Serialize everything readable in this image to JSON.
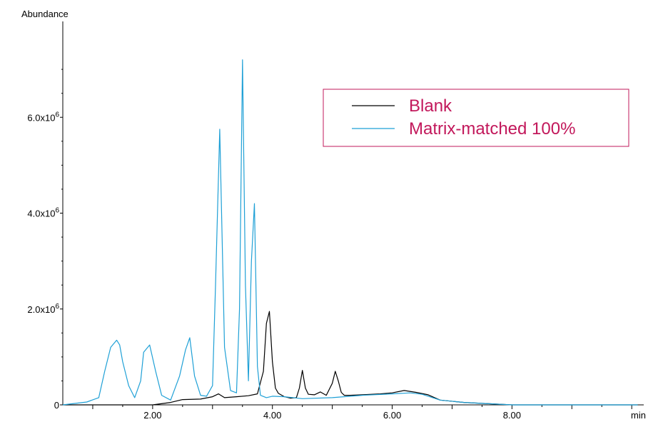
{
  "chart_data": {
    "type": "line",
    "title": "",
    "ylabel": "Abundance",
    "xlabel": "min",
    "xlim": [
      0.5,
      10.2
    ],
    "ylim": [
      0,
      8000000
    ],
    "x_ticks": [
      {
        "value": 2,
        "label": "2.00"
      },
      {
        "value": 4,
        "label": "4.00"
      },
      {
        "value": 6,
        "label": "6.00"
      },
      {
        "value": 8,
        "label": "8.00"
      }
    ],
    "y_ticks": [
      {
        "value": 0,
        "mantissa": "0",
        "exp": ""
      },
      {
        "value": 2000000,
        "mantissa": "2.0x10",
        "exp": "6"
      },
      {
        "value": 4000000,
        "mantissa": "4.0x10",
        "exp": "6"
      },
      {
        "value": 6000000,
        "mantissa": "6.0x10",
        "exp": "6"
      }
    ],
    "legend_position": "top-right",
    "series": [
      {
        "name": "Blank",
        "color": "#000000",
        "x": [
          0.5,
          1.0,
          2.0,
          2.3,
          2.5,
          2.8,
          3.0,
          3.1,
          3.2,
          3.4,
          3.6,
          3.75,
          3.85,
          3.9,
          3.95,
          4.0,
          4.05,
          4.1,
          4.2,
          4.3,
          4.4,
          4.45,
          4.5,
          4.55,
          4.6,
          4.7,
          4.8,
          4.9,
          5.0,
          5.05,
          5.1,
          5.15,
          5.2,
          5.3,
          5.5,
          5.8,
          6.0,
          6.2,
          6.4,
          6.6,
          6.8,
          7.2,
          8.0,
          9.0,
          10.1
        ],
        "y": [
          0,
          0,
          0,
          50000,
          110000,
          120000,
          170000,
          230000,
          150000,
          170000,
          190000,
          230000,
          700000,
          1700000,
          1950000,
          900000,
          350000,
          240000,
          170000,
          140000,
          150000,
          350000,
          720000,
          350000,
          220000,
          210000,
          270000,
          200000,
          450000,
          700000,
          500000,
          260000,
          200000,
          200000,
          210000,
          230000,
          250000,
          300000,
          260000,
          210000,
          100000,
          50000,
          0,
          0,
          0
        ]
      },
      {
        "name": "Matrix-matched 100%",
        "color": "#1fa0d6",
        "x": [
          0.5,
          0.9,
          1.1,
          1.2,
          1.3,
          1.4,
          1.45,
          1.5,
          1.6,
          1.7,
          1.8,
          1.85,
          1.95,
          2.05,
          2.15,
          2.3,
          2.45,
          2.55,
          2.62,
          2.7,
          2.8,
          2.9,
          3.0,
          3.05,
          3.12,
          3.2,
          3.3,
          3.4,
          3.45,
          3.5,
          3.55,
          3.6,
          3.65,
          3.7,
          3.75,
          3.8,
          3.9,
          4.0,
          4.2,
          4.5,
          5.0,
          5.5,
          6.0,
          6.3,
          6.5,
          6.8,
          7.2,
          8.0,
          9.0,
          10.1
        ],
        "y": [
          0,
          60000,
          150000,
          700000,
          1200000,
          1350000,
          1250000,
          900000,
          400000,
          150000,
          500000,
          1100000,
          1250000,
          700000,
          200000,
          100000,
          600000,
          1150000,
          1400000,
          600000,
          200000,
          180000,
          400000,
          2500000,
          5750000,
          1200000,
          300000,
          250000,
          2000000,
          7200000,
          2500000,
          500000,
          3000000,
          4200000,
          800000,
          200000,
          150000,
          180000,
          170000,
          130000,
          150000,
          200000,
          230000,
          250000,
          220000,
          100000,
          50000,
          0,
          0,
          0
        ]
      }
    ]
  }
}
